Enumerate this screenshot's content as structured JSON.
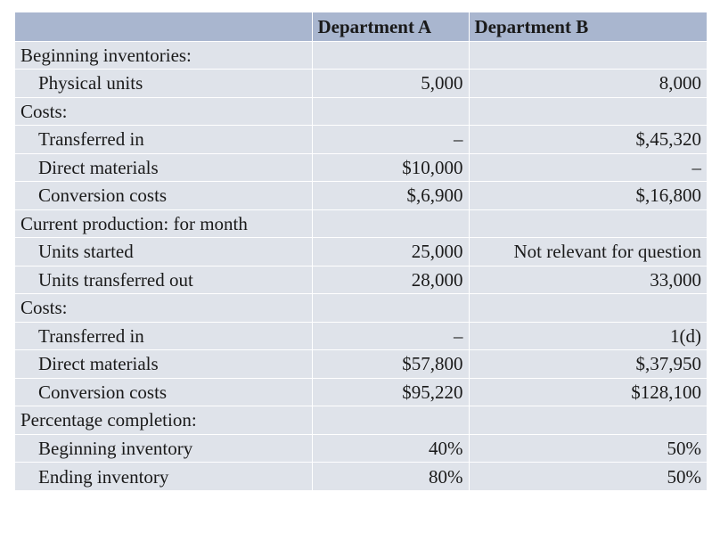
{
  "table": {
    "headers": [
      "",
      "Department A",
      "Department B"
    ],
    "rows": [
      {
        "label": "Beginning inventories:",
        "indent": false,
        "a": "",
        "b": ""
      },
      {
        "label": "Physical units",
        "indent": true,
        "a": "5,000",
        "b": "8,000"
      },
      {
        "label": "Costs:",
        "indent": false,
        "a": "",
        "b": ""
      },
      {
        "label": "Transferred in",
        "indent": true,
        "a": "–",
        "b": "$,45,320"
      },
      {
        "label": "Direct materials",
        "indent": true,
        "a": "$10,000",
        "b": "–"
      },
      {
        "label": "Conversion costs",
        "indent": true,
        "a": "$,6,900",
        "b": "$,16,800"
      },
      {
        "label": "Current production: for month",
        "indent": false,
        "a": "",
        "b": ""
      },
      {
        "label": "Units started",
        "indent": true,
        "a": "25,000",
        "b": "Not relevant for question"
      },
      {
        "label": "Units transferred out",
        "indent": true,
        "a": "28,000",
        "b": "33,000"
      },
      {
        "label": "Costs:",
        "indent": false,
        "a": "",
        "b": ""
      },
      {
        "label": "Transferred in",
        "indent": true,
        "a": "–",
        "b": "1(d)"
      },
      {
        "label": "Direct materials",
        "indent": true,
        "a": "$57,800",
        "b": "$,37,950"
      },
      {
        "label": "Conversion costs",
        "indent": true,
        "a": "$95,220",
        "b": "$128,100"
      },
      {
        "label": "Percentage completion:",
        "indent": false,
        "a": "",
        "b": ""
      },
      {
        "label": "Beginning inventory",
        "indent": true,
        "a": "40%",
        "b": "50%"
      },
      {
        "label": "Ending inventory",
        "indent": true,
        "a": "80%",
        "b": "50%"
      }
    ]
  }
}
